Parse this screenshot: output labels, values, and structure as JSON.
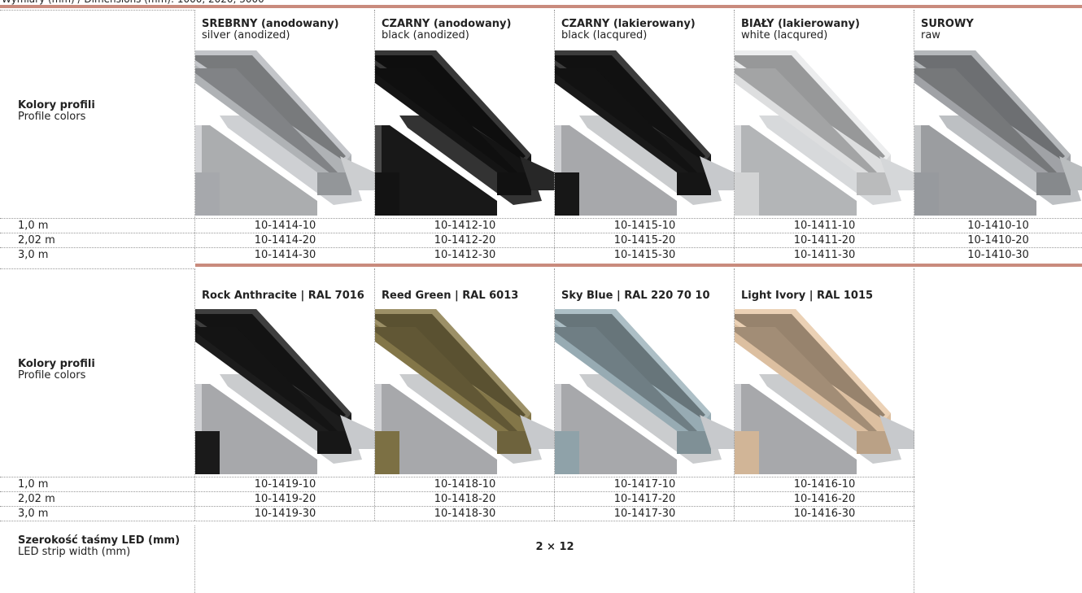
{
  "header": {
    "dimensions": "Wymiary (mm) / Dimensions (mm): 1000, 2020, 3000"
  },
  "sections": [
    {
      "label_pl": "Kolory profili",
      "label_en": "Profile colors",
      "columns": [
        {
          "name": "SREBRNY (anodowany)",
          "subname": "silver (anodized)"
        },
        {
          "name": "CZARNY (anodowany)",
          "subname": "black (anodized)"
        },
        {
          "name": "CZARNY (lakierowany)",
          "subname": "black (lacqured)"
        },
        {
          "name": "BIAŁY (lakierowany)",
          "subname": "white (lacqured)"
        },
        {
          "name": "SUROWY",
          "subname": "raw"
        }
      ],
      "rows": [
        {
          "length": "1,0 m",
          "codes": [
            "10-1414-10",
            "10-1412-10",
            "10-1415-10",
            "10-1411-10",
            "10-1410-10"
          ]
        },
        {
          "length": "2,02 m",
          "codes": [
            "10-1414-20",
            "10-1412-20",
            "10-1415-20",
            "10-1411-20",
            "10-1410-20"
          ]
        },
        {
          "length": "3,0 m",
          "codes": [
            "10-1414-30",
            "10-1412-30",
            "10-1415-30",
            "10-1411-30",
            "10-1410-30"
          ]
        }
      ]
    },
    {
      "label_pl": "Kolory profili",
      "label_en": "Profile colors",
      "columns": [
        {
          "name": "Rock Anthracite | RAL 7016"
        },
        {
          "name": "Reed Green | RAL 6013"
        },
        {
          "name": "Sky Blue | RAL 220 70 10"
        },
        {
          "name": "Light Ivory | RAL 1015"
        }
      ],
      "rows": [
        {
          "length": "1,0 m",
          "codes": [
            "10-1419-10",
            "10-1418-10",
            "10-1417-10",
            "10-1416-10"
          ]
        },
        {
          "length": "2,02 m",
          "codes": [
            "10-1419-20",
            "10-1418-20",
            "10-1417-20",
            "10-1416-20"
          ]
        },
        {
          "length": "3,0 m",
          "codes": [
            "10-1419-30",
            "10-1418-30",
            "10-1417-30",
            "10-1416-30"
          ]
        }
      ]
    }
  ],
  "led": {
    "label_pl": "Szerokość taśmy LED (mm)",
    "label_en": "LED strip width (mm)",
    "value": "2 × 12"
  }
}
